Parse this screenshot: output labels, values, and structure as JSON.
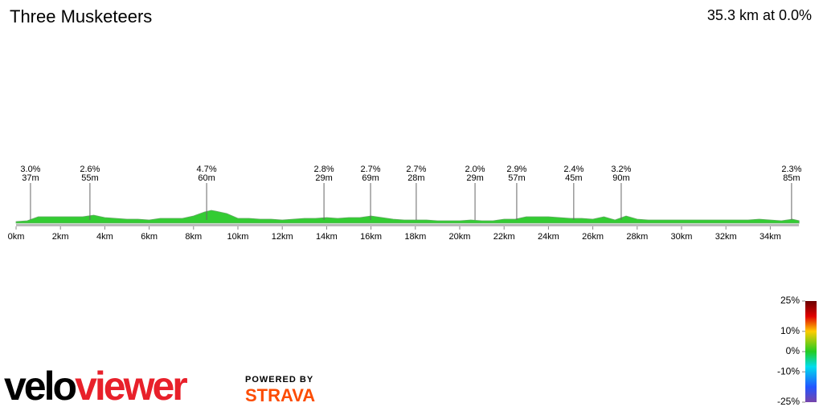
{
  "chart_data": {
    "type": "area",
    "title": "Three Musketeers",
    "subtitle": "35.3 km at 0.0%",
    "x": [
      0,
      0.5,
      1,
      1.5,
      2,
      2.5,
      3,
      3.5,
      4,
      4.5,
      5,
      5.5,
      6,
      6.5,
      7,
      7.5,
      8,
      8.5,
      8.8,
      9,
      9.5,
      10,
      10.5,
      11,
      11.5,
      12,
      12.5,
      13,
      13.5,
      14,
      14.5,
      15,
      15.5,
      16,
      16.5,
      17,
      17.5,
      18,
      18.5,
      19,
      19.5,
      20,
      20.5,
      21,
      21.5,
      22,
      22.5,
      23,
      23.5,
      24,
      24.5,
      25,
      25.5,
      26,
      26.5,
      27,
      27.5,
      28,
      28.5,
      29,
      29.5,
      30,
      30.5,
      31,
      31.5,
      32,
      32.5,
      33,
      33.5,
      34,
      34.5,
      35,
      35.3
    ],
    "values": [
      2,
      3,
      8,
      8,
      8,
      8,
      8,
      10,
      7,
      6,
      5,
      5,
      4,
      6,
      6,
      6,
      9,
      14,
      16,
      15,
      12,
      6,
      6,
      5,
      5,
      4,
      5,
      6,
      6,
      7,
      6,
      7,
      7,
      9,
      7,
      5,
      4,
      4,
      4,
      3,
      3,
      3,
      4,
      3,
      3,
      5,
      5,
      8,
      8,
      8,
      7,
      6,
      6,
      5,
      8,
      4,
      9,
      5,
      4,
      4,
      4,
      4,
      4,
      4,
      4,
      4,
      4,
      4,
      5,
      4,
      3,
      5,
      3
    ],
    "color": "#33cc33",
    "xlim": [
      0,
      35.3
    ],
    "xticks": [
      {
        "value": 0,
        "label": "0km"
      },
      {
        "value": 2,
        "label": "2km"
      },
      {
        "value": 4,
        "label": "4km"
      },
      {
        "value": 6,
        "label": "6km"
      },
      {
        "value": 8,
        "label": "8km"
      },
      {
        "value": 10,
        "label": "10km"
      },
      {
        "value": 12,
        "label": "12km"
      },
      {
        "value": 14,
        "label": "14km"
      },
      {
        "value": 16,
        "label": "16km"
      },
      {
        "value": 18,
        "label": "18km"
      },
      {
        "value": 20,
        "label": "20km"
      },
      {
        "value": 22,
        "label": "22km"
      },
      {
        "value": 24,
        "label": "24km"
      },
      {
        "value": 26,
        "label": "26km"
      },
      {
        "value": 28,
        "label": "28km"
      },
      {
        "value": 30,
        "label": "30km"
      },
      {
        "value": 32,
        "label": "32km"
      },
      {
        "value": 34,
        "label": "34km"
      }
    ],
    "climbs": {
      "x": [
        0.65,
        3.33,
        8.59,
        13.88,
        15.98,
        18.04,
        20.69,
        22.57,
        25.14,
        27.28,
        34.96
      ],
      "gradient_labels": [
        "3.0%",
        "2.6%",
        "4.7%",
        "2.8%",
        "2.7%",
        "2.7%",
        "2.0%",
        "2.9%",
        "2.4%",
        "3.2%",
        "2.3%"
      ],
      "length_labels": [
        "37m",
        "55m",
        "60m",
        "29m",
        "69m",
        "28m",
        "29m",
        "57m",
        "45m",
        "90m",
        "85m"
      ]
    },
    "colorbar": {
      "lim": [
        -25,
        25
      ],
      "ticks": [
        {
          "value": 25,
          "label": "25%"
        },
        {
          "value": 10,
          "label": "10%"
        },
        {
          "value": 0,
          "label": "0%"
        },
        {
          "value": -10,
          "label": "-10%"
        },
        {
          "value": -25,
          "label": "-25%"
        }
      ]
    },
    "brand": {
      "logo_dark": "velo",
      "logo_red": "viewer",
      "powered": "POWERED BY",
      "strava": "STRAVA"
    }
  }
}
